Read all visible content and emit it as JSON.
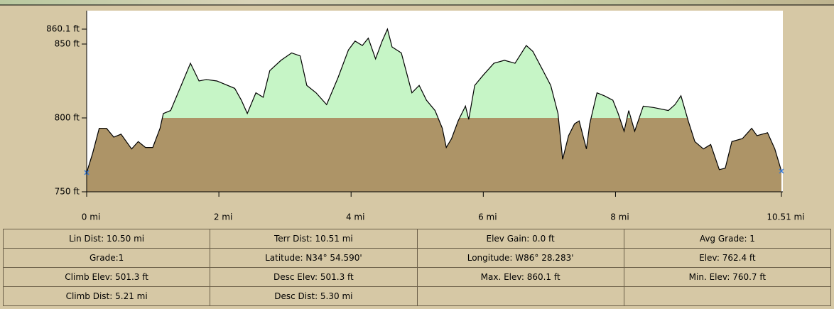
{
  "chart_data": {
    "type": "area",
    "x": [
      0,
      0.09,
      0.19,
      0.3,
      0.41,
      0.52,
      0.68,
      0.78,
      0.89,
      1.0,
      1.11,
      1.16,
      1.27,
      1.43,
      1.57,
      1.7,
      1.81,
      1.97,
      2.08,
      2.24,
      2.34,
      2.43,
      2.56,
      2.67,
      2.77,
      2.94,
      3.1,
      3.23,
      3.33,
      3.47,
      3.63,
      3.8,
      3.96,
      4.06,
      4.17,
      4.26,
      4.37,
      4.47,
      4.55,
      4.62,
      4.76,
      4.92,
      5.03,
      5.14,
      5.27,
      5.38,
      5.44,
      5.52,
      5.62,
      5.73,
      5.78,
      5.87,
      6.0,
      6.16,
      6.32,
      6.48,
      6.65,
      6.75,
      6.88,
      7.02,
      7.13,
      7.2,
      7.29,
      7.38,
      7.45,
      7.56,
      7.61,
      7.72,
      7.83,
      7.96,
      8.04,
      8.13,
      8.2,
      8.29,
      8.42,
      8.58,
      8.8,
      8.9,
      8.99,
      9.1,
      9.2,
      9.33,
      9.44,
      9.57,
      9.66,
      9.76,
      9.92,
      10.06,
      10.14,
      10.3,
      10.41,
      10.51
    ],
    "series": [
      {
        "name": "Elevation",
        "color": "#ad9467",
        "values": [
          763,
          776,
          793,
          793,
          787,
          789,
          779,
          784,
          780,
          780,
          793,
          803,
          805,
          822,
          837,
          825,
          826,
          825,
          823,
          820,
          812,
          803,
          817,
          814,
          832,
          839,
          844,
          842,
          822,
          817,
          809,
          827,
          846,
          852,
          849,
          854,
          840,
          852,
          860.1,
          848,
          844,
          817,
          822,
          812,
          805,
          793,
          780,
          786,
          798,
          808,
          799,
          822,
          829,
          837,
          839,
          837,
          849,
          845,
          834,
          822,
          803,
          772,
          788,
          796,
          798,
          779,
          796,
          817,
          815,
          812,
          803,
          791,
          805,
          791,
          808,
          807,
          805,
          809,
          815,
          798,
          784,
          779,
          782,
          765,
          766,
          784,
          786,
          793,
          788,
          790,
          779,
          764
        ]
      }
    ],
    "high_color": "#c6f5c6",
    "split_at": 800,
    "xlim": [
      0,
      10.51
    ],
    "xticks": [
      {
        "value": 0,
        "label": "0 mi"
      },
      {
        "value": 2,
        "label": "2 mi"
      },
      {
        "value": 4,
        "label": "4 mi"
      },
      {
        "value": 6,
        "label": "6 mi"
      },
      {
        "value": 8,
        "label": "8 mi"
      },
      {
        "value": 10.51,
        "label": "10.51 mi"
      }
    ],
    "ylim": [
      750,
      872.6
    ],
    "yticks": [
      {
        "value": 750,
        "label": "750 ft"
      },
      {
        "value": 800,
        "label": "800 ft"
      },
      {
        "value": 850,
        "label": "850 ft"
      },
      {
        "value": 860.1,
        "label": "860.1 ft"
      }
    ]
  },
  "stats": {
    "rows": [
      [
        "Lin Dist: 10.50 mi",
        "Terr Dist: 10.51 mi",
        "Elev Gain: 0.0 ft",
        "Avg Grade: 1"
      ],
      [
        "Grade:1",
        "Latitude: N34° 54.590'",
        "Longitude: W86° 28.283'",
        "Elev: 762.4 ft"
      ],
      [
        "Climb Elev: 501.3 ft",
        "Desc Elev: 501.3 ft",
        "Max. Elev: 860.1 ft",
        "Min. Elev: 760.7 ft"
      ],
      [
        "Climb Dist: 5.21 mi",
        "Desc Dist: 5.30 mi"
      ]
    ]
  }
}
